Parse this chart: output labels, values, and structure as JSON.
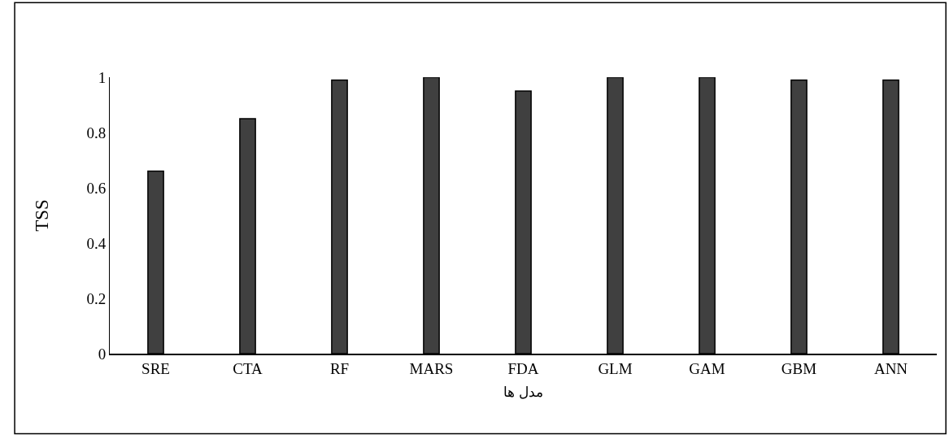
{
  "chart_data": {
    "type": "bar",
    "xlabel": "مدل ها",
    "ylabel": "TSS",
    "categories": [
      "SRE",
      "CTA",
      "RF",
      "MARS",
      "FDA",
      "GLM",
      "GAM",
      "GBM",
      "ANN"
    ],
    "values": [
      0.66,
      0.85,
      0.99,
      1.0,
      0.95,
      1.0,
      1.0,
      0.99,
      0.99
    ],
    "color": "#404040",
    "ylim": [
      0,
      1
    ],
    "yticks": [
      0,
      0.2,
      0.4,
      0.6,
      0.8,
      1
    ]
  }
}
